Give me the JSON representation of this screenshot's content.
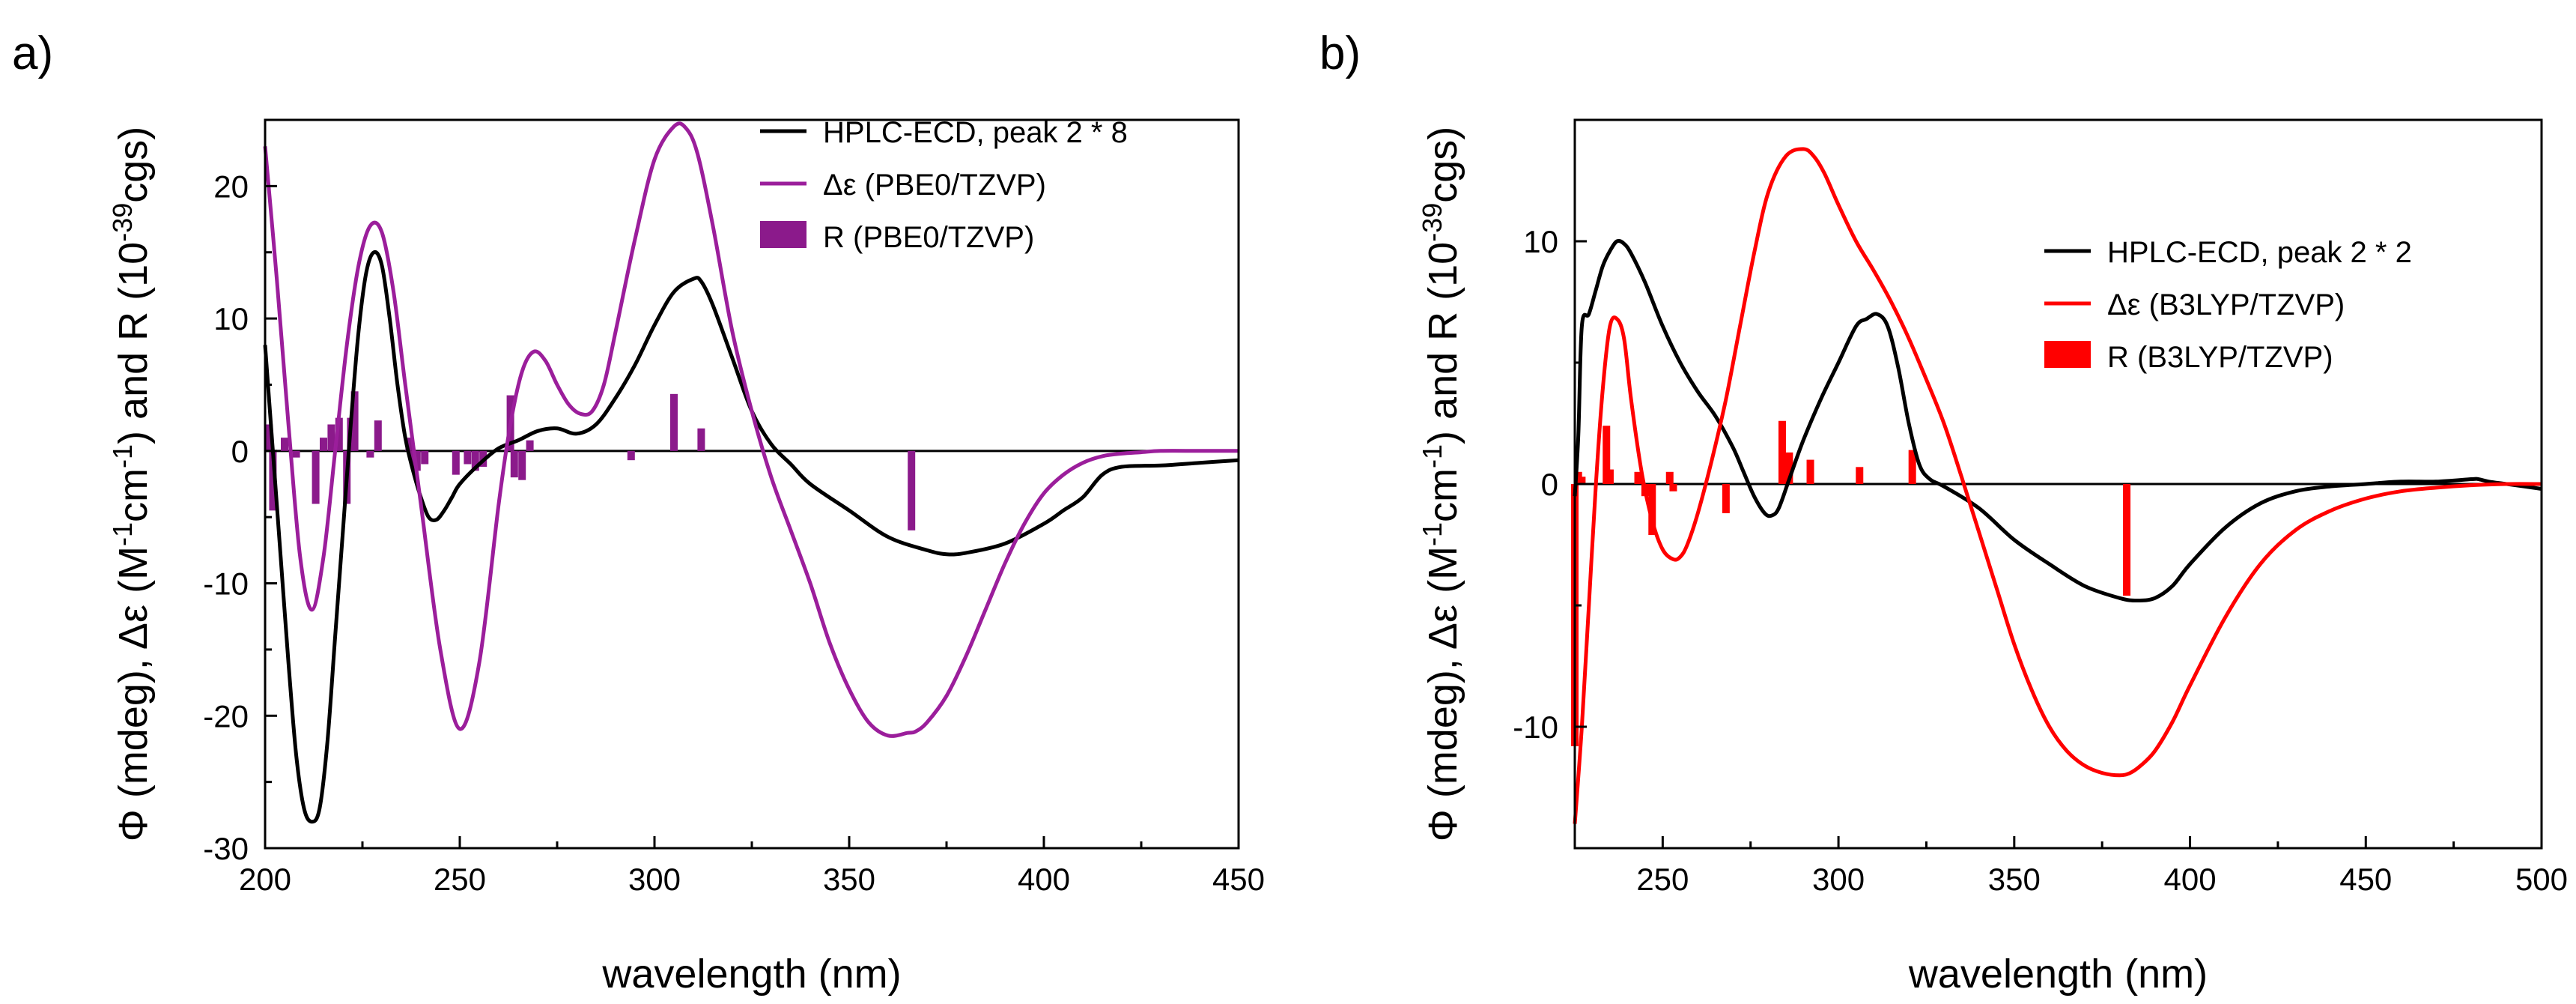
{
  "chart_data": [
    {
      "panel_label": "a)",
      "type": "line",
      "xlabel": "wavelength (nm)",
      "ylabel": "Φ (mdeg), Δε (M⁻¹cm⁻¹) and R (10⁻³⁹cgs)",
      "ylabel_parts": {
        "phi": "Φ",
        "rest1": " (mdeg), ",
        "de": "Δε",
        "rest2": " (M",
        "sup1": "-1",
        "rest3": "cm",
        "sup2": "-1",
        "rest4": ") and R (10",
        "sup3": "-39",
        "rest5": "cgs)"
      },
      "xlim": [
        200,
        450
      ],
      "ylim": [
        -30,
        25
      ],
      "xticks": [
        200,
        250,
        300,
        350,
        400,
        450
      ],
      "yticks": [
        -30,
        -20,
        -10,
        0,
        10,
        20
      ],
      "zero_line": true,
      "legend": [
        "HPLC-ECD, peak 2 * 8",
        "Δε (PBE0/TZVP)",
        "R (PBE0/TZVP)"
      ],
      "series": [
        {
          "name": "HPLC-ECD, peak 2 * 8",
          "color": "#000000",
          "x": [
            200,
            202,
            204,
            206,
            208,
            210,
            212,
            214,
            216,
            218,
            220,
            222,
            224,
            226,
            228,
            230,
            232,
            234,
            236,
            238,
            240,
            242,
            244,
            246,
            248,
            250,
            255,
            260,
            265,
            270,
            275,
            280,
            285,
            290,
            295,
            300,
            305,
            310,
            312,
            315,
            320,
            325,
            330,
            335,
            340,
            350,
            360,
            370,
            375,
            380,
            390,
            400,
            405,
            410,
            415,
            420,
            430,
            440,
            450
          ],
          "y": [
            8,
            0,
            -8,
            -16,
            -23,
            -27,
            -28,
            -27,
            -22,
            -14,
            -6,
            2,
            9,
            13.5,
            15,
            14,
            10,
            5,
            1,
            -1.5,
            -3.5,
            -5,
            -5.2,
            -4.5,
            -3.5,
            -2.5,
            -1,
            0.2,
            0.8,
            1.5,
            1.7,
            1.3,
            2,
            4,
            6.5,
            9.5,
            12,
            13,
            12.8,
            11,
            7,
            3,
            0.5,
            -1,
            -2.5,
            -4.5,
            -6.5,
            -7.5,
            -7.8,
            -7.7,
            -7,
            -5.5,
            -4.5,
            -3.5,
            -1.8,
            -1.2,
            -1.1,
            -0.9,
            -0.7
          ]
        },
        {
          "name": "Δε (PBE0/TZVP)",
          "color": "#9b1e9b",
          "x": [
            200,
            203,
            206,
            209,
            212,
            215,
            218,
            221,
            224,
            227,
            230,
            233,
            236,
            240,
            245,
            250,
            255,
            260,
            263,
            266,
            269,
            272,
            275,
            278,
            281,
            284,
            287,
            290,
            295,
            300,
            305,
            308,
            311,
            315,
            320,
            325,
            330,
            335,
            340,
            345,
            350,
            355,
            360,
            365,
            367,
            370,
            375,
            380,
            385,
            390,
            395,
            400,
            405,
            410,
            415,
            420,
            425,
            430,
            440,
            450
          ],
          "y": [
            23,
            13,
            2,
            -8,
            -12,
            -8,
            0,
            8,
            14,
            17,
            16.5,
            12,
            5,
            -4,
            -15,
            -21,
            -16,
            -4,
            2,
            6,
            7.5,
            6.8,
            5,
            3.5,
            2.8,
            3,
            5,
            9,
            16,
            22,
            24.5,
            24.4,
            22.5,
            17,
            9,
            3,
            -2,
            -6,
            -10,
            -14.5,
            -18,
            -20.5,
            -21.5,
            -21.3,
            -21.2,
            -20.5,
            -18.5,
            -15.5,
            -12,
            -8.5,
            -5.5,
            -3.2,
            -1.8,
            -0.9,
            -0.4,
            -0.2,
            -0.1,
            0,
            0,
            0
          ]
        },
        {
          "name": "R (PBE0/TZVP)",
          "type": "stick",
          "color": "#8b1a8b",
          "x": [
            201,
            202,
            205,
            208,
            213,
            215,
            217,
            219,
            221,
            222,
            223,
            227,
            229,
            237,
            238,
            239,
            241,
            249,
            252,
            254,
            256,
            263,
            264,
            266,
            268,
            294,
            305,
            312,
            366
          ],
          "y": [
            2,
            -4.5,
            1,
            -0.5,
            -4,
            1,
            2,
            2.5,
            -4,
            2.5,
            4.5,
            -0.5,
            2.3,
            1,
            -1,
            -1.5,
            -1,
            -1.8,
            -1,
            -1.5,
            -1.2,
            4.2,
            -2,
            -2.2,
            0.8,
            -0.7,
            4.3,
            1.7,
            -6
          ]
        }
      ]
    },
    {
      "panel_label": "b)",
      "type": "line",
      "xlabel": "wavelength (nm)",
      "ylabel": "Φ (mdeg), Δε (M⁻¹cm⁻¹) and R (10⁻³⁹cgs)",
      "ylabel_parts": {
        "phi": "Φ",
        "rest1": " (mdeg), ",
        "de": "Δε",
        "rest2": " (M",
        "sup1": "-1",
        "rest3": "cm",
        "sup2": "-1",
        "rest4": ") and R (10",
        "sup3": "-39",
        "rest5": "cgs)"
      },
      "xlim": [
        225,
        500
      ],
      "ylim": [
        -15,
        15
      ],
      "xticks": [
        250,
        300,
        350,
        400,
        450,
        500
      ],
      "yticks": [
        -10,
        0,
        10
      ],
      "zero_line": true,
      "legend": [
        "HPLC-ECD, peak 2 * 2",
        "Δε (B3LYP/TZVP)",
        "R (B3LYP/TZVP)"
      ],
      "series": [
        {
          "name": "HPLC-ECD, peak 2 * 2",
          "color": "#000000",
          "x": [
            225,
            226,
            227,
            229,
            231,
            233,
            235,
            237,
            239,
            241,
            245,
            250,
            255,
            260,
            265,
            270,
            273,
            276,
            279,
            281,
            283,
            286,
            290,
            295,
            300,
            305,
            308,
            311,
            314,
            317,
            320,
            323,
            326,
            330,
            340,
            350,
            360,
            370,
            380,
            385,
            390,
            395,
            400,
            410,
            420,
            430,
            440,
            450,
            460,
            470,
            480,
            482,
            485,
            490,
            495,
            500
          ],
          "y": [
            -0.5,
            2,
            6.5,
            7,
            8,
            9,
            9.6,
            10,
            9.9,
            9.5,
            8.3,
            6.5,
            5,
            3.8,
            2.8,
            1.5,
            0.5,
            -0.5,
            -1.2,
            -1.3,
            -1,
            0.2,
            1.8,
            3.5,
            5,
            6.5,
            6.8,
            7,
            6.5,
            4.8,
            2.5,
            0.8,
            0.2,
            -0.1,
            -1,
            -2.3,
            -3.3,
            -4.2,
            -4.7,
            -4.8,
            -4.7,
            -4.2,
            -3.3,
            -1.8,
            -0.8,
            -0.3,
            -0.1,
            0,
            0.1,
            0.1,
            0.2,
            0.2,
            0.1,
            0,
            -0.1,
            -0.2
          ]
        },
        {
          "name": "Δε (B3LYP/TZVP)",
          "color": "#ff0000",
          "x": [
            225,
            227,
            229,
            231,
            233,
            235,
            237,
            239,
            241,
            244,
            247,
            250,
            253,
            255,
            257,
            260,
            264,
            268,
            272,
            276,
            280,
            285,
            290,
            293,
            296,
            300,
            305,
            310,
            315,
            320,
            325,
            330,
            335,
            340,
            345,
            350,
            355,
            360,
            365,
            370,
            375,
            380,
            383,
            386,
            390,
            395,
            400,
            410,
            420,
            430,
            440,
            450,
            460,
            470,
            480,
            490,
            500
          ],
          "y": [
            -14,
            -10,
            -5,
            0,
            4,
            6.5,
            6.8,
            6,
            3.5,
            0.5,
            -1.5,
            -2.7,
            -3.1,
            -3,
            -2.5,
            -1.2,
            1,
            3.5,
            6.5,
            9.5,
            12,
            13.5,
            13.8,
            13.5,
            12.8,
            11.5,
            10,
            8.8,
            7.5,
            6,
            4.3,
            2.5,
            0.3,
            -2,
            -4.3,
            -6.6,
            -8.5,
            -10,
            -11,
            -11.6,
            -11.9,
            -12,
            -11.9,
            -11.6,
            -11,
            -9.8,
            -8.3,
            -5.5,
            -3.3,
            -1.9,
            -1.1,
            -0.6,
            -0.3,
            -0.15,
            -0.05,
            0,
            0
          ]
        },
        {
          "name": "R (B3LYP/TZVP)",
          "type": "stick",
          "color": "#ff0000",
          "x": [
            225,
            226,
            227,
            234,
            235,
            243,
            245,
            247,
            252,
            253,
            268,
            284,
            286,
            292,
            306,
            321,
            382
          ],
          "y": [
            -10.8,
            0.5,
            0.3,
            2.4,
            0.6,
            0.5,
            -0.5,
            -2.1,
            0.5,
            -0.3,
            -1.2,
            2.6,
            1.3,
            1,
            0.7,
            1.4,
            -4.6
          ]
        }
      ]
    }
  ]
}
